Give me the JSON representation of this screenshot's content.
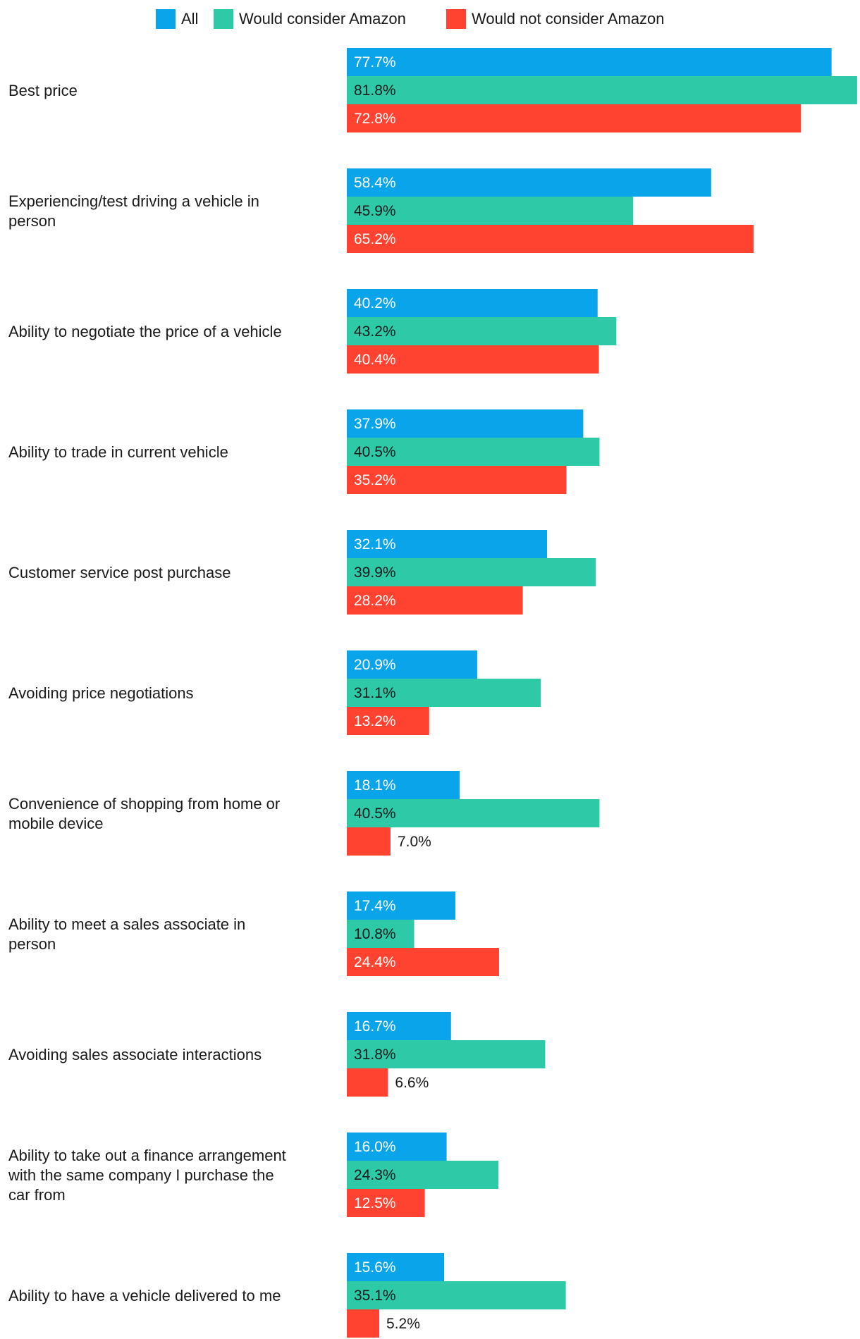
{
  "chart_data": {
    "type": "bar",
    "orientation": "horizontal",
    "legend_position": "top",
    "categories": [
      "Best price",
      "Experiencing/test driving a vehicle in person",
      "Ability to negotiate the price of a vehicle",
      "Ability to trade in current vehicle",
      "Customer service post purchase",
      "Avoiding price negotiations",
      "Convenience of shopping from home or mobile device",
      "Ability to meet a sales associate in person",
      "Avoiding sales associate interactions",
      "Ability to take out a finance arrangement with the same company I purchase the car from",
      "Ability to have a vehicle delivered to me"
    ],
    "category_lines": [
      [
        "Best price"
      ],
      [
        "Experiencing/test driving a vehicle in",
        "person"
      ],
      [
        "Ability to negotiate the price of a vehicle"
      ],
      [
        "Ability to trade in current vehicle"
      ],
      [
        "Customer service post purchase"
      ],
      [
        "Avoiding price negotiations"
      ],
      [
        "Convenience of shopping from home or",
        "mobile device"
      ],
      [
        "Ability to meet a sales associate in",
        "person"
      ],
      [
        "Avoiding sales associate interactions"
      ],
      [
        "Ability to take out a finance arrangement",
        "with the same company I purchase the",
        "car from"
      ],
      [
        "Ability to have a vehicle delivered to me"
      ]
    ],
    "series": [
      {
        "name": "All",
        "color": "#0aa4ea",
        "values": [
          77.7,
          58.4,
          40.2,
          37.9,
          32.1,
          20.9,
          18.1,
          17.4,
          16.7,
          16.0,
          15.6
        ],
        "labels": [
          "77.7%",
          "58.4%",
          "40.2%",
          "37.9%",
          "32.1%",
          "20.9%",
          "18.1%",
          "17.4%",
          "16.7%",
          "16.0%",
          "15.6%"
        ]
      },
      {
        "name": "Would consider Amazon",
        "color": "#2ecaa8",
        "values": [
          81.8,
          45.9,
          43.2,
          40.5,
          39.9,
          31.1,
          40.5,
          10.8,
          31.8,
          24.3,
          35.1
        ],
        "labels": [
          "81.8%",
          "45.9%",
          "43.2%",
          "40.5%",
          "39.9%",
          "31.1%",
          "40.5%",
          "10.8%",
          "31.8%",
          "24.3%",
          "35.1%"
        ]
      },
      {
        "name": "Would not consider Amazon",
        "color": "#ff4330",
        "values": [
          72.8,
          65.2,
          40.4,
          35.2,
          28.2,
          13.2,
          7.0,
          24.4,
          6.6,
          12.5,
          5.2
        ],
        "labels": [
          "72.8%",
          "65.2%",
          "40.4%",
          "35.2%",
          "28.2%",
          "13.2%",
          "7.0%",
          "24.4%",
          "6.6%",
          "12.5%",
          "5.2%"
        ]
      }
    ],
    "xlim": [
      0,
      82
    ],
    "grid": false,
    "title": "",
    "xlabel": "",
    "ylabel": ""
  }
}
